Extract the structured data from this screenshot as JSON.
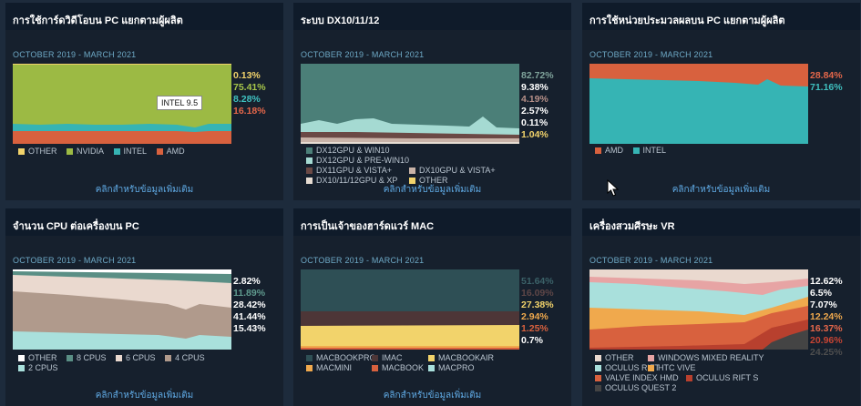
{
  "date_range": "OCTOBER 2019 - MARCH 2021",
  "more_label": "คลิกสำหรับข้อมูลเพิ่มเติม",
  "panels": [
    {
      "title": "การใช้การ์ดวิดีโอบน PC แยกตามผู้ผลิต",
      "values": [
        {
          "text": "0.13%",
          "color": "#f2d36b"
        },
        {
          "text": "75.41%",
          "color": "#a7c64a"
        },
        {
          "text": "8.28%",
          "color": "#3fc0bf"
        },
        {
          "text": "16.18%",
          "color": "#e5674a"
        }
      ],
      "legend": [
        {
          "label": "OTHER",
          "color": "#f2d36b"
        },
        {
          "label": "NVIDIA",
          "color": "#9cba44"
        },
        {
          "label": "INTEL",
          "color": "#36b4b4"
        },
        {
          "label": "AMD",
          "color": "#d8613e"
        }
      ],
      "tooltip": "INTEL 9.5"
    },
    {
      "title": "ระบบ DX10/11/12",
      "values": [
        {
          "text": "82.72%",
          "color": "#7fa39b"
        },
        {
          "text": "9.38%",
          "color": "#ffffff"
        },
        {
          "text": "4.19%",
          "color": "#b58f88"
        },
        {
          "text": "2.57%",
          "color": "#ffffff"
        },
        {
          "text": "0.11%",
          "color": "#ffffff"
        },
        {
          "text": "1.04%",
          "color": "#f2d36b"
        }
      ],
      "legend": [
        {
          "label": "DX12GPU & WIN10",
          "color": "#4b7f78"
        },
        {
          "label": "DX12GPU & PRE-WIN10",
          "color": "#a5dad2"
        },
        {
          "label": "DX11GPU & VISTA+",
          "color": "#6b4945"
        },
        {
          "label": "DX10GPU & VISTA+",
          "color": "#c9b3a8"
        },
        {
          "label": "DX10/11/12GPU & XP",
          "color": "#e6dcd2"
        },
        {
          "label": "OTHER",
          "color": "#f2d36b"
        }
      ]
    },
    {
      "title": "การใช้หน่วยประมวลผลบน PC แยกตามผู้ผลิต",
      "values": [
        {
          "text": "28.84%",
          "color": "#e5674a"
        },
        {
          "text": "71.16%",
          "color": "#3fc0bf"
        }
      ],
      "legend": [
        {
          "label": "AMD",
          "color": "#d8613e"
        },
        {
          "label": "INTEL",
          "color": "#36b4b4"
        }
      ]
    },
    {
      "title": "จำนวน CPU ต่อเครื่องบน PC",
      "values": [
        {
          "text": "2.82%",
          "color": "#ffffff"
        },
        {
          "text": "11.89%",
          "color": "#5f9a8e"
        },
        {
          "text": "28.42%",
          "color": "#ffffff"
        },
        {
          "text": "41.44%",
          "color": "#ffffff"
        },
        {
          "text": "15.43%",
          "color": "#ffffff"
        }
      ],
      "legend": [
        {
          "label": "OTHER",
          "color": "#ffffff"
        },
        {
          "label": "8 CPUS",
          "color": "#5a8f85"
        },
        {
          "label": "6 CPUS",
          "color": "#ead9cf"
        },
        {
          "label": "4 CPUS",
          "color": "#b09a8c"
        },
        {
          "label": "2 CPUS",
          "color": "#a9e0dc"
        }
      ]
    },
    {
      "title": "การเป็นเจ้าของฮาร์ดแวร์ MAC",
      "values": [
        {
          "text": "51.64%",
          "color": "#3b6168"
        },
        {
          "text": "16.09%",
          "color": "#5e4647"
        },
        {
          "text": "27.38%",
          "color": "#f2d36b"
        },
        {
          "text": "2.94%",
          "color": "#f0a94d"
        },
        {
          "text": "1.25%",
          "color": "#d8613e"
        },
        {
          "text": "0.7%",
          "color": "#ffffff"
        }
      ],
      "legend": [
        {
          "label": "MACBOOKPRO",
          "color": "#2e4f55"
        },
        {
          "label": "IMAC",
          "color": "#4d3637"
        },
        {
          "label": "MACBOOKAIR",
          "color": "#f2d36b"
        },
        {
          "label": "MACMINI",
          "color": "#f0a94d"
        },
        {
          "label": "MACBOOK",
          "color": "#d8613e"
        },
        {
          "label": "MACPRO",
          "color": "#a9e0dc"
        }
      ]
    },
    {
      "title": "เครื่องสวมศีรษะ VR",
      "values": [
        {
          "text": "12.62%",
          "color": "#ffffff"
        },
        {
          "text": "6.5%",
          "color": "#ffffff"
        },
        {
          "text": "7.07%",
          "color": "#ffffff"
        },
        {
          "text": "12.24%",
          "color": "#f0a94d"
        },
        {
          "text": "16.37%",
          "color": "#e5674a"
        },
        {
          "text": "20.96%",
          "color": "#c74433"
        },
        {
          "text": "24.25%",
          "color": "#4e4e4e"
        }
      ],
      "legend": [
        {
          "label": "OTHER",
          "color": "#ead9cf"
        },
        {
          "label": "WINDOWS MIXED REALITY",
          "color": "#e7a4a4"
        },
        {
          "label": "OCULUS RIFT",
          "color": "#a9e0dc"
        },
        {
          "label": "HTC VIVE",
          "color": "#f0a94d"
        },
        {
          "label": "VALVE INDEX HMD",
          "color": "#d8613e"
        },
        {
          "label": "OCULUS RIFT S",
          "color": "#b8402e"
        },
        {
          "label": "OCULUS QUEST 2",
          "color": "#444444"
        }
      ]
    }
  ],
  "chart_data": [
    {
      "type": "area",
      "title": "การใช้การ์ดวิดีโอบน PC แยกตามผู้ผลิต",
      "series": [
        {
          "name": "OTHER",
          "values": [
            0.13
          ]
        },
        {
          "name": "NVIDIA",
          "values": [
            75.41
          ]
        },
        {
          "name": "INTEL",
          "values": [
            8.28
          ]
        },
        {
          "name": "AMD",
          "values": [
            16.18
          ]
        }
      ]
    },
    {
      "type": "area",
      "title": "ระบบ DX10/11/12",
      "series": [
        {
          "name": "DX12GPU & WIN10",
          "values": [
            82.72
          ]
        },
        {
          "name": "DX12GPU & PRE-WIN10",
          "values": [
            9.38
          ]
        },
        {
          "name": "DX11GPU & VISTA+",
          "values": [
            4.19
          ]
        },
        {
          "name": "DX10GPU & VISTA+",
          "values": [
            2.57
          ]
        },
        {
          "name": "DX10/11/12GPU & XP",
          "values": [
            0.11
          ]
        },
        {
          "name": "OTHER",
          "values": [
            1.04
          ]
        }
      ]
    },
    {
      "type": "area",
      "title": "การใช้หน่วยประมวลผลบน PC แยกตามผู้ผลิต",
      "series": [
        {
          "name": "AMD",
          "values": [
            28.84
          ]
        },
        {
          "name": "INTEL",
          "values": [
            71.16
          ]
        }
      ]
    },
    {
      "type": "area",
      "title": "จำนวน CPU ต่อเครื่องบน PC",
      "series": [
        {
          "name": "OTHER",
          "values": [
            2.82
          ]
        },
        {
          "name": "8 CPUS",
          "values": [
            11.89
          ]
        },
        {
          "name": "6 CPUS",
          "values": [
            28.42
          ]
        },
        {
          "name": "4 CPUS",
          "values": [
            41.44
          ]
        },
        {
          "name": "2 CPUS",
          "values": [
            15.43
          ]
        }
      ]
    },
    {
      "type": "area",
      "title": "การเป็นเจ้าของฮาร์ดแวร์ MAC",
      "series": [
        {
          "name": "MACBOOKPRO",
          "values": [
            51.64
          ]
        },
        {
          "name": "IMAC",
          "values": [
            16.09
          ]
        },
        {
          "name": "MACBOOKAIR",
          "values": [
            27.38
          ]
        },
        {
          "name": "MACMINI",
          "values": [
            2.94
          ]
        },
        {
          "name": "MACBOOK",
          "values": [
            1.25
          ]
        },
        {
          "name": "MACPRO",
          "values": [
            0.7
          ]
        }
      ]
    },
    {
      "type": "area",
      "title": "เครื่องสวมศีรษะ VR",
      "series": [
        {
          "name": "OTHER",
          "values": [
            12.62
          ]
        },
        {
          "name": "WINDOWS MIXED REALITY",
          "values": [
            6.5
          ]
        },
        {
          "name": "OCULUS RIFT",
          "values": [
            7.07
          ]
        },
        {
          "name": "HTC VIVE",
          "values": [
            12.24
          ]
        },
        {
          "name": "VALVE INDEX HMD",
          "values": [
            16.37
          ]
        },
        {
          "name": "OCULUS RIFT S",
          "values": [
            20.96
          ]
        },
        {
          "name": "OCULUS QUEST 2",
          "values": [
            24.25
          ]
        }
      ]
    }
  ]
}
